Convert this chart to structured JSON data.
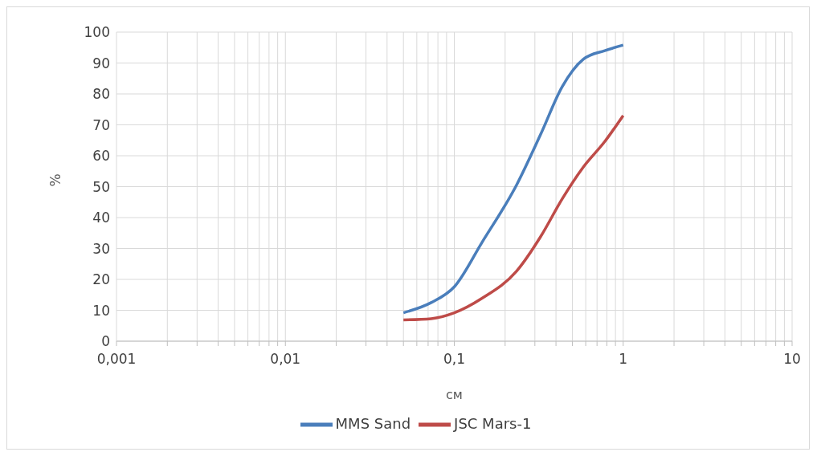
{
  "chart_data": {
    "type": "line",
    "xlabel": "см",
    "ylabel": "%",
    "log": "x",
    "grid": true,
    "legend": "bottom",
    "marker": "none",
    "line_style": "solid",
    "xlim": [
      0.001,
      10
    ],
    "xticks": [
      {
        "value": 0.001,
        "label": "0,001"
      },
      {
        "value": 0.002,
        "label": null
      },
      {
        "value": 0.003,
        "label": null
      },
      {
        "value": 0.004,
        "label": null
      },
      {
        "value": 0.005,
        "label": null
      },
      {
        "value": 0.006,
        "label": null
      },
      {
        "value": 0.007,
        "label": null
      },
      {
        "value": 0.008,
        "label": null
      },
      {
        "value": 0.009,
        "label": null
      },
      {
        "value": 0.01,
        "label": "0,01"
      },
      {
        "value": 0.02,
        "label": null
      },
      {
        "value": 0.03,
        "label": null
      },
      {
        "value": 0.04,
        "label": null
      },
      {
        "value": 0.05,
        "label": null
      },
      {
        "value": 0.06,
        "label": null
      },
      {
        "value": 0.07,
        "label": null
      },
      {
        "value": 0.08,
        "label": null
      },
      {
        "value": 0.09,
        "label": null
      },
      {
        "value": 0.1,
        "label": "0,1"
      },
      {
        "value": 0.2,
        "label": null
      },
      {
        "value": 0.3,
        "label": null
      },
      {
        "value": 0.4,
        "label": null
      },
      {
        "value": 0.5,
        "label": null
      },
      {
        "value": 0.6,
        "label": null
      },
      {
        "value": 0.7,
        "label": null
      },
      {
        "value": 0.8,
        "label": null
      },
      {
        "value": 0.9,
        "label": null
      },
      {
        "value": 1,
        "label": "1"
      },
      {
        "value": 2,
        "label": null
      },
      {
        "value": 3,
        "label": null
      },
      {
        "value": 4,
        "label": null
      },
      {
        "value": 5,
        "label": null
      },
      {
        "value": 6,
        "label": null
      },
      {
        "value": 7,
        "label": null
      },
      {
        "value": 8,
        "label": null
      },
      {
        "value": 9,
        "label": null
      },
      {
        "value": 10,
        "label": "10"
      }
    ],
    "ylim": [
      0,
      100
    ],
    "yticks": [
      0,
      10,
      20,
      30,
      40,
      50,
      60,
      70,
      80,
      90,
      100
    ],
    "series": [
      {
        "name": "MMS Sand",
        "color": "#4a7ebb",
        "x": [
          0.05,
          0.073,
          0.1,
          0.146,
          0.234,
          0.325,
          0.435,
          0.58,
          0.778,
          1
        ],
        "values": [
          9.2,
          12.5,
          17.6,
          32,
          50.6,
          67,
          82.3,
          91.2,
          94,
          95.8
        ]
      },
      {
        "name": "JSC Mars-1",
        "color": "#be4b48",
        "x": [
          0.05,
          0.073,
          0.1,
          0.146,
          0.234,
          0.325,
          0.435,
          0.58,
          0.778,
          1
        ],
        "values": [
          6.9,
          7.3,
          9.2,
          13.9,
          22.7,
          33.9,
          46,
          56.3,
          64.6,
          73
        ]
      }
    ]
  }
}
